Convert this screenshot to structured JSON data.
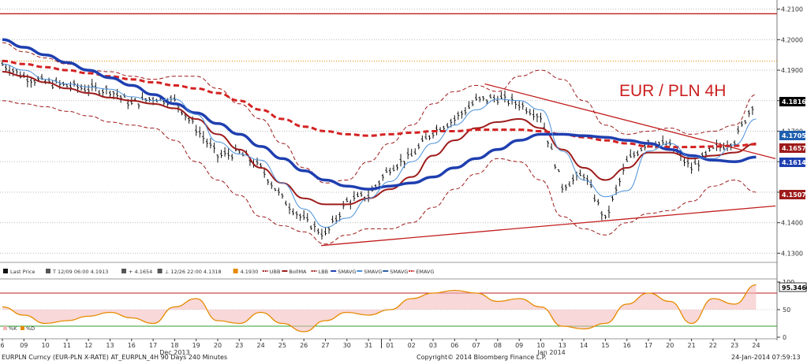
{
  "chart_data": {
    "type": "candlestick",
    "title": "EUR / PLN 4H",
    "y_axis": {
      "range": [
        4.127,
        4.213
      ],
      "ticks": [
        "4.1300",
        "4.1400",
        "4.1500",
        "4.1600",
        "4.1700",
        "4.1800",
        "4.1900",
        "4.2000",
        "4.2100"
      ]
    },
    "x_axis": {
      "ticks": [
        "6",
        "09",
        "10",
        "11",
        "12",
        "13",
        "16",
        "17",
        "18",
        "19",
        "20",
        "23",
        "24",
        "25",
        "26",
        "27",
        "30",
        "31",
        "01",
        "02",
        "03",
        "06",
        "07",
        "08",
        "09",
        "10",
        "13",
        "14",
        "15",
        "16",
        "17",
        "20",
        "21",
        "22",
        "23",
        "24"
      ],
      "month_labels": [
        "Dec 2013",
        "Jan 2014"
      ]
    },
    "price_labels": [
      {
        "value": "4.1816",
        "color": "#000000"
      },
      {
        "value": "4.1705",
        "color": "#1f5fb0"
      },
      {
        "value": "4.1657",
        "color": "#9e1b1b"
      },
      {
        "value": "4.1614",
        "color": "#1f3fb0"
      },
      {
        "value": "4.1507",
        "color": "#9e1b1b"
      }
    ],
    "horizontal_levels": [
      4.2085,
      4.193
    ],
    "series": [
      {
        "name": "Last Price",
        "type": "ohlc",
        "close": [
          4.192,
          4.188,
          4.186,
          4.185,
          4.184,
          4.1835,
          4.179,
          4.181,
          4.18,
          4.171,
          4.162,
          4.163,
          4.158,
          4.148,
          4.141,
          4.136,
          4.147,
          4.149,
          4.158,
          4.162,
          4.17,
          4.174,
          4.18,
          4.181,
          4.179,
          4.175,
          4.152,
          4.156,
          4.141,
          4.16,
          4.167,
          4.165,
          4.158,
          4.164,
          4.167,
          4.181
        ]
      },
      {
        "name": "BollMA",
        "values": [
          4.1895,
          4.188,
          4.186,
          4.184,
          4.1825,
          4.181,
          4.18,
          4.179,
          4.1775,
          4.174,
          4.169,
          4.164,
          4.158,
          4.153,
          4.148,
          4.146,
          4.146,
          4.148,
          4.151,
          4.155,
          4.162,
          4.167,
          4.171,
          4.173,
          4.174,
          4.171,
          4.164,
          4.158,
          4.154,
          4.158,
          4.163,
          4.163,
          4.161,
          4.162,
          4.163,
          4.166
        ]
      },
      {
        "name": "UBB",
        "values": [
          4.199,
          4.196,
          4.194,
          4.192,
          4.19,
          4.1895,
          4.188,
          4.187,
          4.188,
          4.188,
          4.184,
          4.179,
          4.174,
          4.166,
          4.158,
          4.153,
          4.154,
          4.16,
          4.166,
          4.172,
          4.179,
          4.183,
          4.185,
          4.183,
          4.188,
          4.19,
          4.187,
          4.18,
          4.172,
          4.169,
          4.17,
          4.171,
          4.169,
          4.17,
          4.172,
          4.182
        ]
      },
      {
        "name": "LBB",
        "values": [
          4.18,
          4.179,
          4.178,
          4.1765,
          4.175,
          4.173,
          4.172,
          4.171,
          4.167,
          4.16,
          4.154,
          4.149,
          4.142,
          4.139,
          4.137,
          4.133,
          4.136,
          4.138,
          4.138,
          4.14,
          4.145,
          4.151,
          4.156,
          4.161,
          4.16,
          4.154,
          4.142,
          4.138,
          4.136,
          4.14,
          4.143,
          4.144,
          4.147,
          4.152,
          4.154,
          4.15
        ]
      },
      {
        "name": "SMAVG",
        "values": [
          4.2,
          4.1975,
          4.195,
          4.1925,
          4.19,
          4.1875,
          4.185,
          4.182,
          4.179,
          4.176,
          4.1725,
          4.169,
          4.165,
          4.161,
          4.157,
          4.154,
          4.152,
          4.151,
          4.152,
          4.153,
          4.155,
          4.158,
          4.161,
          4.164,
          4.167,
          4.169,
          4.169,
          4.1685,
          4.168,
          4.167,
          4.166,
          4.164,
          4.162,
          4.1605,
          4.16,
          4.1615
        ]
      },
      {
        "name": "EMAVG",
        "values": [
          4.193,
          4.192,
          4.191,
          4.19,
          4.189,
          4.188,
          4.187,
          4.186,
          4.185,
          4.184,
          4.1825,
          4.18,
          4.177,
          4.174,
          4.1715,
          4.17,
          4.169,
          4.1685,
          4.169,
          4.1695,
          4.17,
          4.17,
          4.1705,
          4.1705,
          4.1705,
          4.17,
          4.169,
          4.168,
          4.167,
          4.166,
          4.165,
          4.1648,
          4.1648,
          4.165,
          4.1652,
          4.1657
        ]
      }
    ],
    "trendlines": [
      {
        "name": "upper",
        "from": {
          "x_index": 22.4,
          "y": 4.1855
        },
        "to": {
          "x_index": 35.9,
          "y": 4.161
        }
      },
      {
        "name": "lower",
        "from": {
          "x_index": 14.8,
          "y": 4.1325
        },
        "to": {
          "x_index": 35.9,
          "y": 4.1455
        }
      }
    ],
    "oscillator": {
      "name": "Stochastic",
      "range": [
        0,
        100
      ],
      "ticks": [
        "0",
        "50",
        "100"
      ],
      "levels": [
        20,
        80
      ],
      "last_value": "95.3466",
      "legend": [
        "%K",
        "%D"
      ],
      "values": [
        55,
        40,
        25,
        30,
        38,
        45,
        35,
        25,
        55,
        70,
        30,
        25,
        45,
        25,
        10,
        30,
        45,
        40,
        50,
        70,
        80,
        85,
        80,
        65,
        70,
        55,
        20,
        15,
        25,
        60,
        80,
        65,
        25,
        70,
        60,
        95
      ]
    }
  },
  "legend": {
    "items": [
      {
        "label": "Last Price",
        "color": "#111111",
        "icon": "candle-icon"
      },
      {
        "label": "T 12/09 06:00 4.1913",
        "color": "#555555",
        "icon": "high-marker-icon"
      },
      {
        "label": "+ 4.1654",
        "color": "#555555",
        "icon": "avg-marker-icon"
      },
      {
        "label": "⊥ 12/26 22:00 4.1318",
        "color": "#555555",
        "icon": "low-marker-icon"
      },
      {
        "label": "4.1930",
        "color": "#e68a00",
        "icon": "level-swatch-icon"
      },
      {
        "label": "UBB",
        "color": "#9e1b1b",
        "icon": "dashed-line-icon"
      },
      {
        "label": "BollMA",
        "color": "#9e1b1b",
        "icon": "line-swatch-icon"
      },
      {
        "label": "LBB",
        "color": "#9e1b1b",
        "icon": "dashed-line-icon"
      },
      {
        "label": "SMAVG",
        "color": "#1f3fb0",
        "icon": "line-swatch-icon"
      },
      {
        "label": "SMAVG",
        "color": "#4a90d9",
        "icon": "line-swatch-icon"
      },
      {
        "label": "SMAVG",
        "color": "#2a5fa0",
        "icon": "line-swatch-icon"
      },
      {
        "label": "EMAVG",
        "color": "#cc1f1f",
        "icon": "dashed-line-icon"
      }
    ]
  },
  "footer": {
    "left": "EURPLN Curncy (EUR-PLN X-RATE) AT_EURPLN_4H 90 Days 240 Minutes",
    "center": "Copyright© 2014 Bloomberg Finance L.P.",
    "right": "24-Jan-2014 07:59:13"
  }
}
